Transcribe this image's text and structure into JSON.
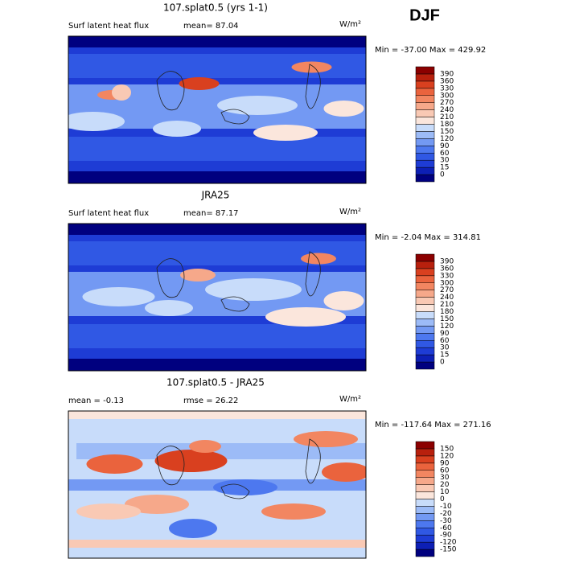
{
  "figure_title": "DJF",
  "colors": [
    "#00007f",
    "#0d1fb5",
    "#1e3cd5",
    "#3058e4",
    "#4d78ef",
    "#7399f3",
    "#9cbbf7",
    "#c8dcfa",
    "#fbe6dc",
    "#f9c9b4",
    "#f6a88a",
    "#f28661",
    "#ea633d",
    "#d9401f",
    "#b8200d",
    "#8b0000"
  ],
  "panels": [
    {
      "title": "107.splat0.5 (yrs 1-1)",
      "labels": [
        "Surf latent heat flux",
        "mean=  87.04"
      ],
      "units": "W/m²",
      "range": "Min = -37.00 Max = 429.92",
      "levels": [
        0,
        15,
        30,
        60,
        90,
        120,
        150,
        180,
        210,
        240,
        270,
        300,
        330,
        360,
        390
      ]
    },
    {
      "title": "JRA25",
      "labels": [
        "Surf latent heat flux",
        "mean=  87.17"
      ],
      "units": "W/m²",
      "range": "Min =  -2.04 Max = 314.81",
      "levels": [
        0,
        15,
        30,
        60,
        90,
        120,
        150,
        180,
        210,
        240,
        270,
        300,
        330,
        360,
        390
      ]
    },
    {
      "title": "107.splat0.5 - JRA25",
      "labels": [
        "mean =  -0.13",
        "rmse =  26.22"
      ],
      "units": "W/m²",
      "range": "Min = -117.64 Max = 271.16",
      "levels": [
        -150,
        -120,
        -90,
        -60,
        -30,
        -20,
        -10,
        0,
        10,
        20,
        30,
        60,
        90,
        120,
        150
      ]
    }
  ]
}
